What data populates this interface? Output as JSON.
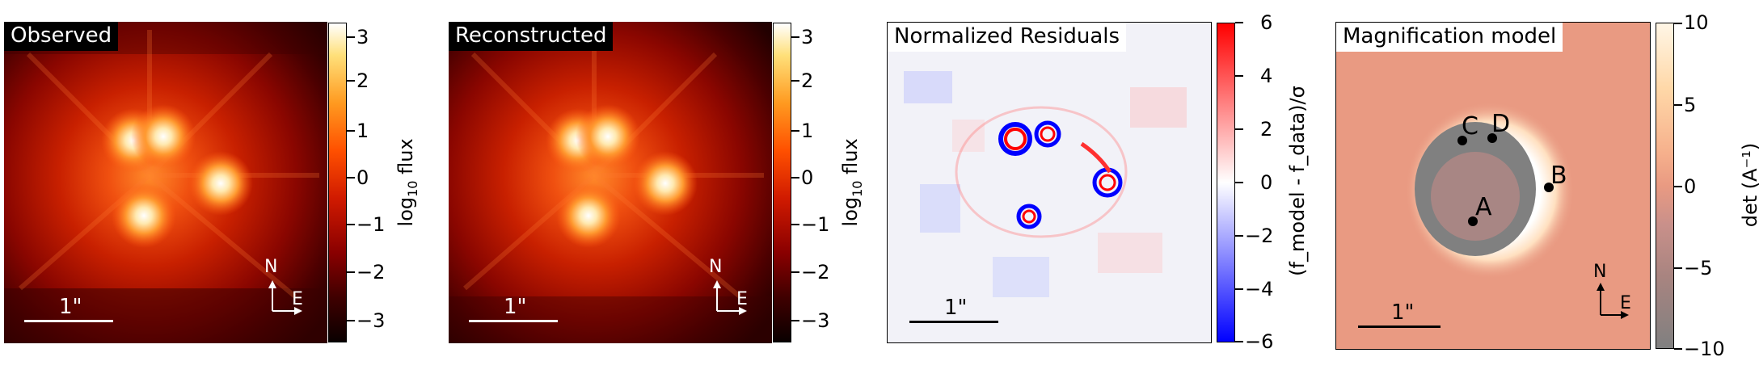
{
  "panels": {
    "observed": {
      "title": "Observed",
      "scale_label": "1\"",
      "compass": {
        "north": "N",
        "east": "E"
      },
      "colorbar": {
        "label_base": "log",
        "label_sub": "10",
        "label_rest": " flux",
        "ticks": [
          "3",
          "2",
          "1",
          "0",
          "−1",
          "−2",
          "−3"
        ]
      }
    },
    "reconstructed": {
      "title": "Reconstructed",
      "scale_label": "1\"",
      "compass": {
        "north": "N",
        "east": "E"
      },
      "colorbar": {
        "label_base": "log",
        "label_sub": "10",
        "label_rest": " flux",
        "ticks": [
          "3",
          "2",
          "1",
          "0",
          "−1",
          "−2",
          "−3"
        ]
      }
    },
    "residuals": {
      "title": "Normalized Residuals",
      "scale_label": "1\"",
      "colorbar": {
        "label": "(f_model - f_data)/σ",
        "ticks": [
          "6",
          "4",
          "2",
          "0",
          "−2",
          "−4",
          "−6"
        ]
      }
    },
    "magnification": {
      "title": "Magnification model",
      "scale_label": "1\"",
      "compass": {
        "north": "N",
        "east": "E"
      },
      "images": {
        "a": "A",
        "b": "B",
        "c": "C",
        "d": "D"
      },
      "colorbar": {
        "label": "det (A⁻¹)",
        "ticks": [
          "10",
          "5",
          "0",
          "−5",
          "−10"
        ]
      }
    }
  },
  "colors": {
    "hot_dark": "#2a0000",
    "hot_mid": "#c21b00",
    "residual_pos": "#ff0000",
    "residual_neg": "#0000ff",
    "mag_bg": "#e99a82"
  }
}
